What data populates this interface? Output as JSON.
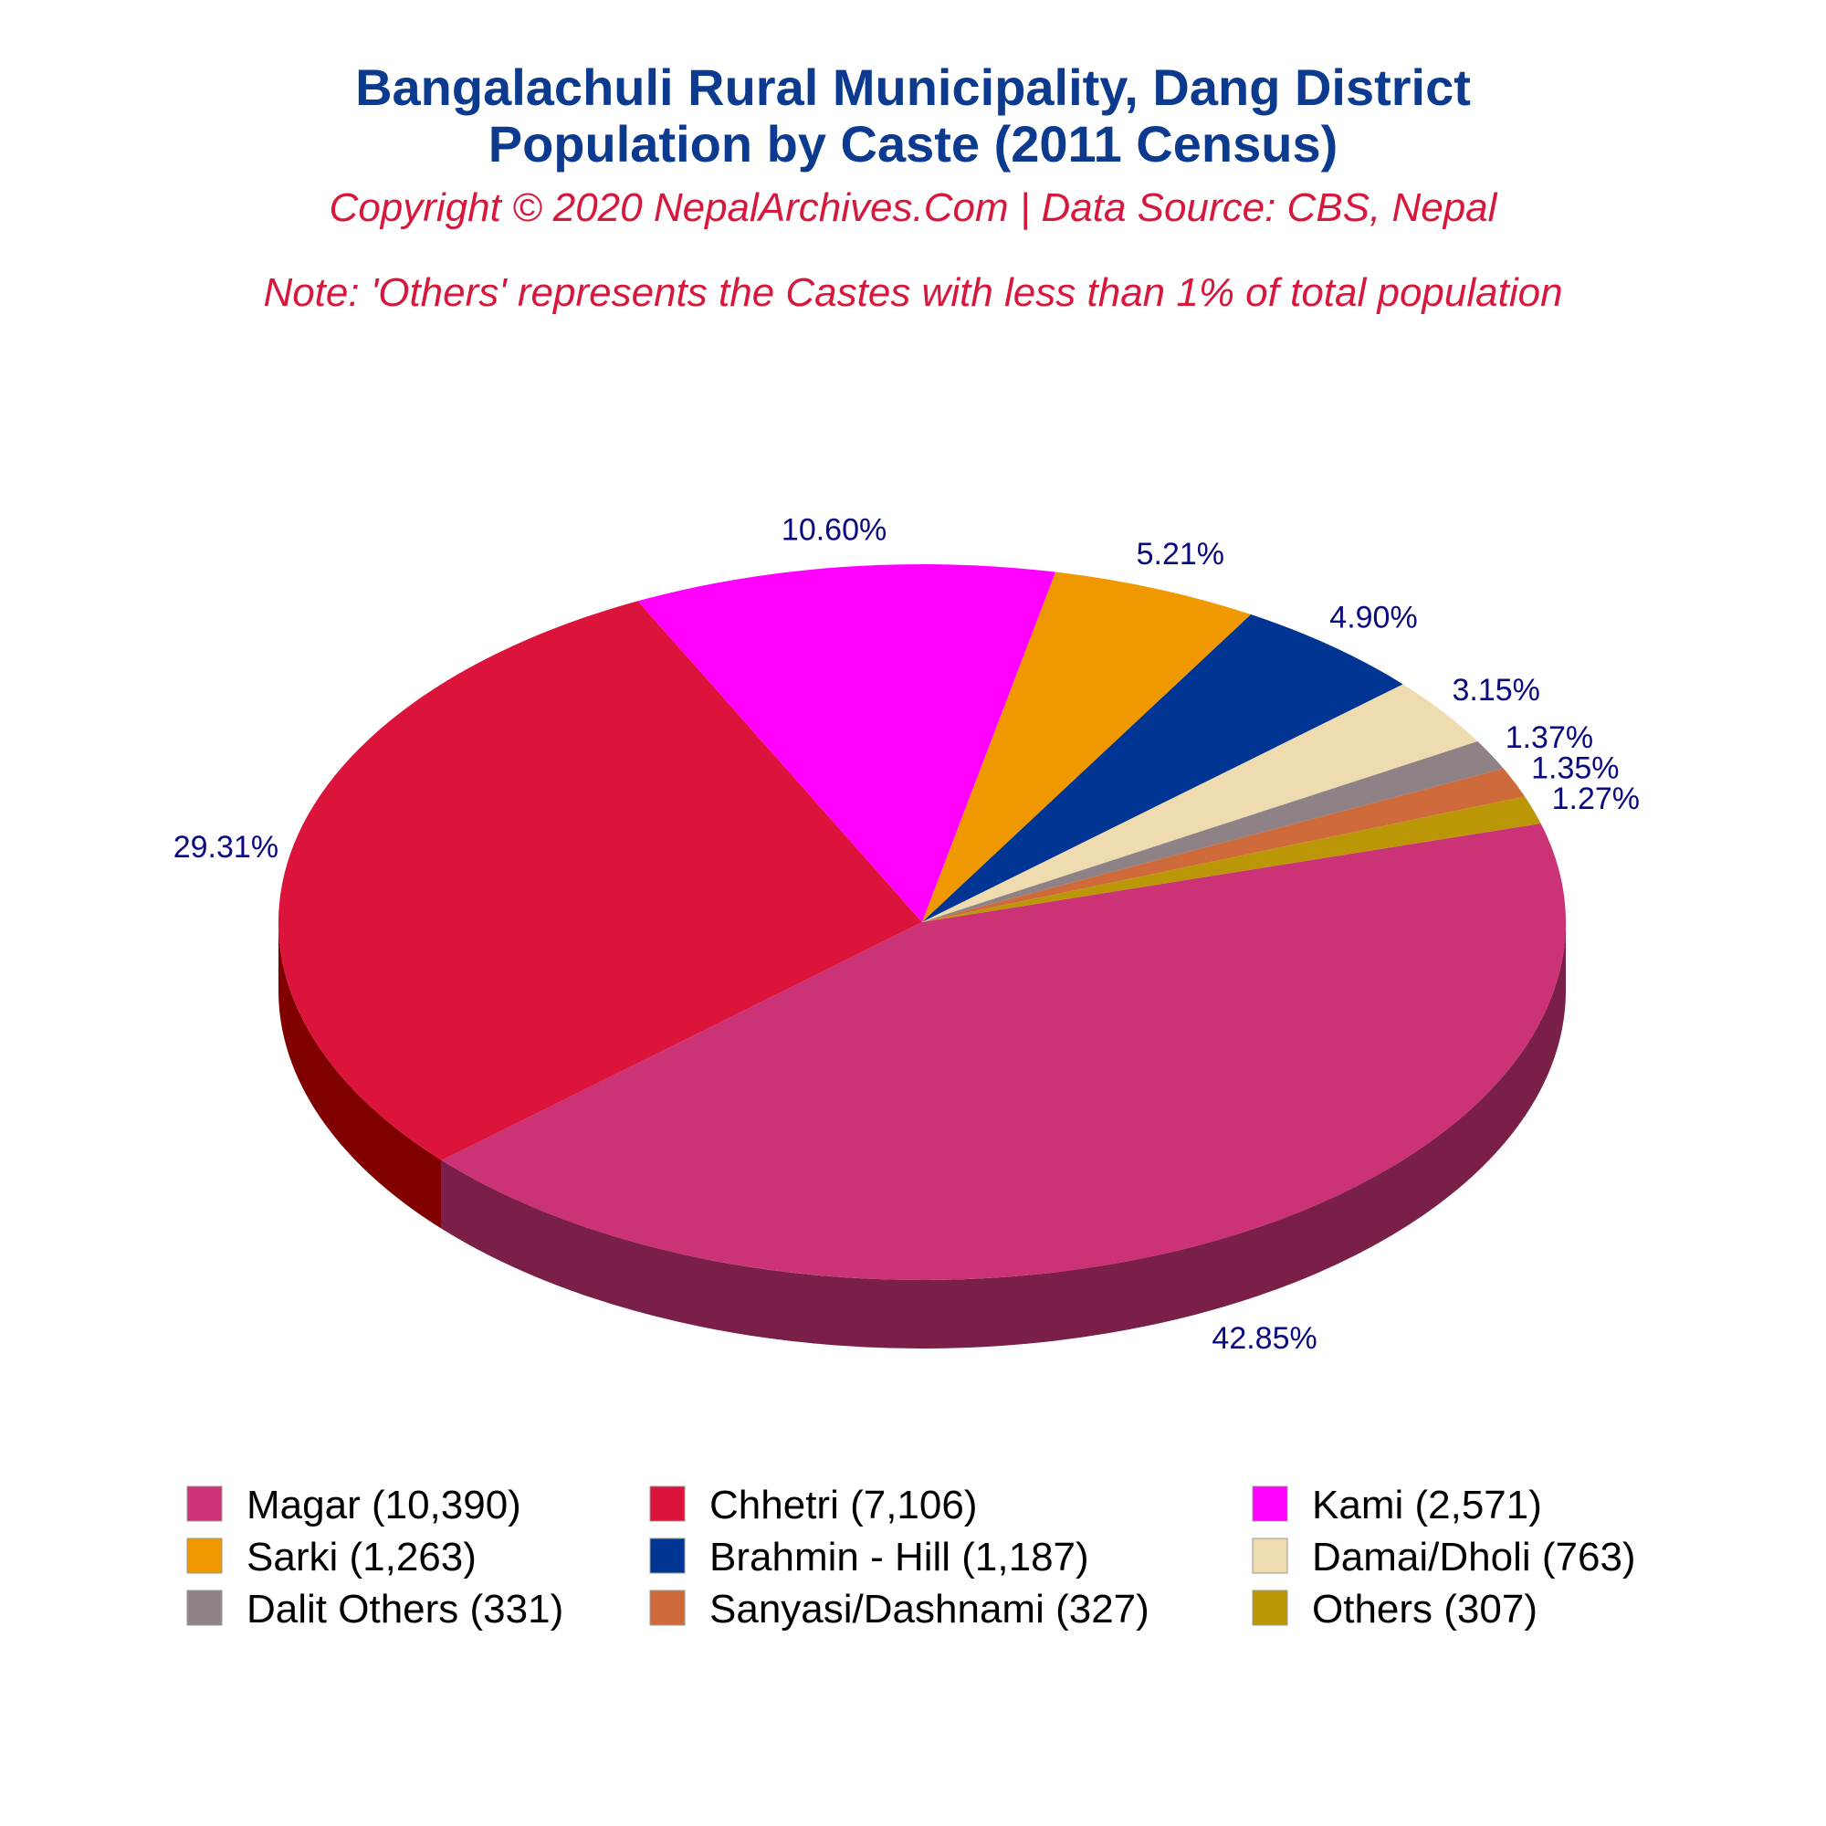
{
  "header": {
    "title_line1": "Bangalachuli Rural Municipality, Dang District",
    "title_line2": "Population by Caste (2011 Census)",
    "copyright": "Copyright © 2020 NepalArchives.Com | Data Source: CBS, Nepal",
    "note": "Note: 'Others' represents the Castes with less than 1% of total population"
  },
  "chart_data": {
    "type": "pie",
    "style": "3d",
    "legend_position": "bottom",
    "slices": [
      {
        "label": "Magar (10,390)",
        "value": 10390,
        "percent_label": "42.85%",
        "color": "#cc3377",
        "side_color": "#7a1f47"
      },
      {
        "label": "Chhetri (7,106)",
        "value": 7106,
        "percent_label": "29.31%",
        "color": "#dc143c",
        "side_color": "#800000"
      },
      {
        "label": "Kami (2,571)",
        "value": 2571,
        "percent_label": "10.60%",
        "color": "#ff00ff",
        "side_color": "#a000a8"
      },
      {
        "label": "Sarki (1,263)",
        "value": 1263,
        "percent_label": "5.21%",
        "color": "#f09800",
        "side_color": "#8b3a00"
      },
      {
        "label": "Brahmin - Hill (1,187)",
        "value": 1187,
        "percent_label": "4.90%",
        "color": "#003594",
        "side_color": "#001a50"
      },
      {
        "label": "Damai/Dholi (763)",
        "value": 763,
        "percent_label": "3.15%",
        "color": "#eedbb0",
        "side_color": "#b8a77a"
      },
      {
        "label": "Dalit Others (331)",
        "value": 331,
        "percent_label": "1.37%",
        "color": "#8e8286",
        "side_color": "#5a5054"
      },
      {
        "label": "Sanyasi/Dashnami (327)",
        "value": 327,
        "percent_label": "1.35%",
        "color": "#cf6a3a",
        "side_color": "#7f3d1e"
      },
      {
        "label": "Others (307)",
        "value": 307,
        "percent_label": "1.27%",
        "color": "#bb9707",
        "side_color": "#6e5803"
      }
    ]
  }
}
